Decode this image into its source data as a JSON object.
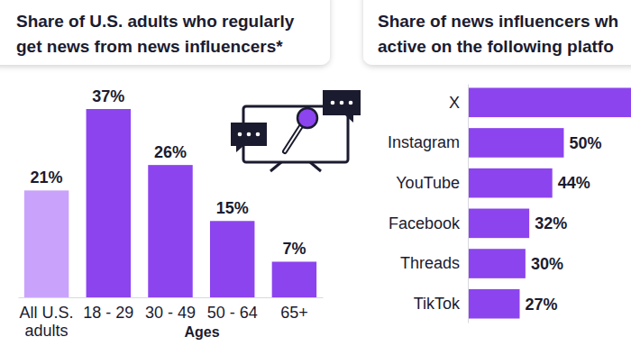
{
  "chart_data": [
    {
      "type": "bar",
      "title": "Share of U.S. adults who regularly\nget news from news influencers*",
      "categories": [
        "All U.S. adults",
        "18 - 29",
        "30 - 49",
        "50 - 64",
        "65+"
      ],
      "values": [
        21,
        37,
        26,
        15,
        7
      ],
      "value_labels": [
        "21%",
        "37%",
        "26%",
        "15%",
        "7%"
      ],
      "colors": [
        "#c9a3fb",
        "#8c44ee",
        "#8c44ee",
        "#8c44ee",
        "#8c44ee"
      ],
      "xlabel": "Ages",
      "ylim": [
        0,
        37
      ],
      "data_labels": true,
      "tick_labels": "x"
    },
    {
      "type": "bar",
      "orientation": "horizontal",
      "title": "Share of news influencers wh\nactive on the following platfo",
      "categories": [
        "X",
        "Instagram",
        "YouTube",
        "Facebook",
        "Threads",
        "TikTok"
      ],
      "values": [
        85,
        50,
        44,
        32,
        30,
        27
      ],
      "value_labels": [
        null,
        "50%",
        "44%",
        "32%",
        "30%",
        "27%"
      ],
      "color": "#8c44ee",
      "xlim": [
        0,
        85
      ],
      "data_labels": true,
      "tick_labels": "y"
    }
  ]
}
